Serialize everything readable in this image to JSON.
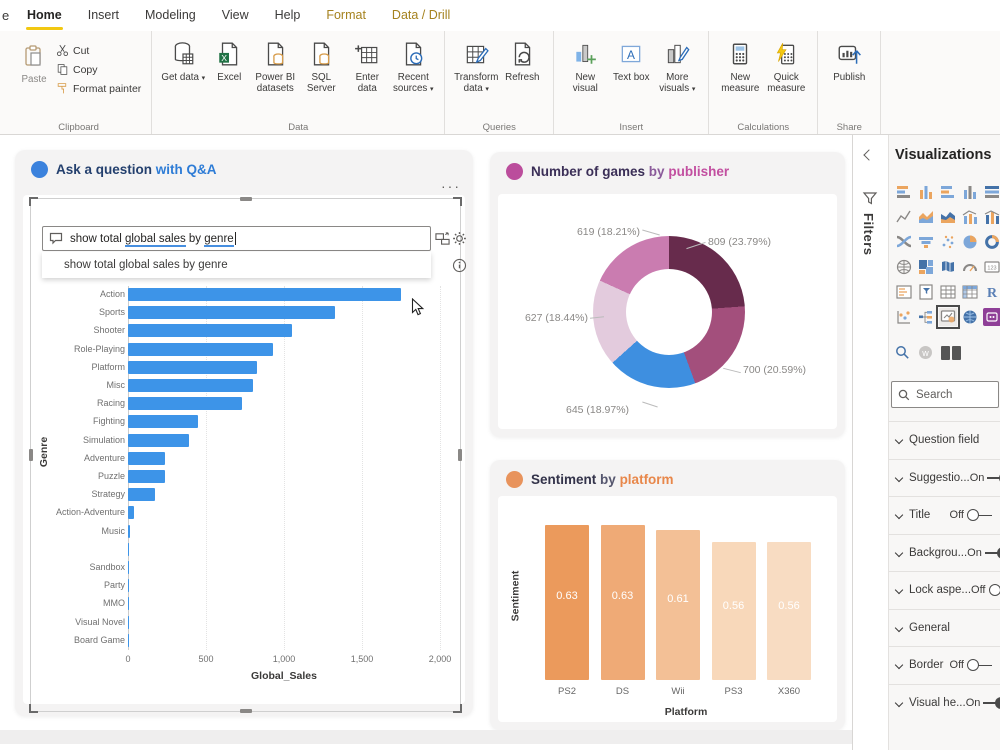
{
  "window": {
    "app": "Power BI Desktop"
  },
  "tabbar": {
    "file_partial": "e",
    "tabs": [
      {
        "label": "Home",
        "active": true,
        "contextual": false
      },
      {
        "label": "Insert",
        "active": false,
        "contextual": false
      },
      {
        "label": "Modeling",
        "active": false,
        "contextual": false
      },
      {
        "label": "View",
        "active": false,
        "contextual": false
      },
      {
        "label": "Help",
        "active": false,
        "contextual": false
      },
      {
        "label": "Format",
        "active": false,
        "contextual": true
      },
      {
        "label": "Data / Drill",
        "active": false,
        "contextual": true
      }
    ]
  },
  "ribbon": {
    "groups": [
      {
        "label": "Clipboard",
        "kind": "clipboard",
        "items": [
          {
            "label": "Paste",
            "icon": "paste-icon",
            "arrow": false
          },
          {
            "label": "Cut",
            "icon": "cut-icon",
            "arrow": false
          },
          {
            "label": "Copy",
            "icon": "copy-icon",
            "arrow": false
          },
          {
            "label": "Format painter",
            "icon": "format-painter-icon",
            "arrow": false
          }
        ]
      },
      {
        "label": "Data",
        "kind": "tall",
        "items": [
          {
            "label": "Get data",
            "icon": "database-icon",
            "arrow": true
          },
          {
            "label": "Excel",
            "icon": "excel-icon",
            "arrow": false
          },
          {
            "label": "Power BI datasets",
            "icon": "doc-cylinder-icon",
            "arrow": false
          },
          {
            "label": "SQL Server",
            "icon": "doc-cylinder-icon",
            "arrow": false
          },
          {
            "label": "Enter data",
            "icon": "table-plus-icon",
            "arrow": false
          },
          {
            "label": "Recent sources",
            "icon": "doc-clock-icon",
            "arrow": true
          }
        ]
      },
      {
        "label": "Queries",
        "kind": "tall",
        "items": [
          {
            "label": "Transform data",
            "icon": "table-pencil-icon",
            "arrow": true
          },
          {
            "label": "Refresh",
            "icon": "doc-refresh-icon",
            "arrow": false
          }
        ]
      },
      {
        "label": "Insert",
        "kind": "tall",
        "items": [
          {
            "label": "New visual",
            "icon": "chart-plus-icon",
            "arrow": false
          },
          {
            "label": "Text box",
            "icon": "textbox-icon",
            "arrow": false
          },
          {
            "label": "More visuals",
            "icon": "chart-pencil-icon",
            "arrow": true
          }
        ]
      },
      {
        "label": "Calculations",
        "kind": "tall",
        "items": [
          {
            "label": "New measure",
            "icon": "calculator-icon",
            "arrow": false
          },
          {
            "label": "Quick measure",
            "icon": "calculator-bolt-icon",
            "arrow": false
          }
        ]
      },
      {
        "label": "Share",
        "kind": "tall",
        "items": [
          {
            "label": "Publish",
            "icon": "publish-icon",
            "arrow": false
          }
        ]
      }
    ]
  },
  "qna": {
    "title_primary": "Ask a question",
    "title_secondary": "with Q&A",
    "title_dot_color": "#3b82dd",
    "more_options": "···",
    "input_segments": [
      {
        "text": "show total ",
        "underline": false
      },
      {
        "text": "global sales",
        "underline": true
      },
      {
        "text": " by ",
        "underline": false
      },
      {
        "text": "genre",
        "underline": true
      }
    ],
    "suggestion": "show total global sales by genre",
    "chart_data": {
      "type": "bar",
      "orientation": "horizontal",
      "categories": [
        "Action",
        "Sports",
        "Shooter",
        "Role-Playing",
        "Platform",
        "Misc",
        "Racing",
        "Fighting",
        "Simulation",
        "Adventure",
        "Puzzle",
        "Strategy",
        "Action-Adventure",
        "Music",
        "",
        "Sandbox",
        "Party",
        "MMO",
        "Visual Novel",
        "Board Game"
      ],
      "values": [
        1750,
        1330,
        1050,
        930,
        830,
        800,
        730,
        450,
        390,
        240,
        240,
        175,
        40,
        10,
        6,
        5,
        4,
        3,
        2,
        1
      ],
      "xlabel": "Global_Sales",
      "ylabel": "Genre",
      "xlim": [
        0,
        2000
      ],
      "xticks": [
        "0",
        "500",
        "1,000",
        "1,500",
        "2,000"
      ],
      "bar_color": "#3d94e8",
      "grid": true
    }
  },
  "donut": {
    "title_primary": "Number of games",
    "title_mid": "by",
    "title_secondary": "publisher",
    "title_dot_color": "#bb4d9c",
    "chart_data": {
      "type": "pie",
      "subtype": "donut",
      "title": "Number of games by publisher",
      "values": [
        809,
        700,
        645,
        627,
        619
      ],
      "percents": [
        23.79,
        20.59,
        18.97,
        18.44,
        18.21
      ],
      "labels": [
        "809 (23.79%)",
        "700 (20.59%)",
        "645 (18.97%)",
        "627 (18.44%)",
        "619 (18.21%)"
      ],
      "colors": [
        "#672b4c",
        "#a34f7c",
        "#3e8fe0",
        "#e3cbdd",
        "#ca7cb0"
      ],
      "legend": "none"
    }
  },
  "sentiment": {
    "title_primary": "Sentiment",
    "title_mid": "by",
    "title_secondary": "platform",
    "title_dot_color": "#e8935c",
    "chart_data": {
      "type": "bar",
      "orientation": "vertical",
      "categories": [
        "PS2",
        "DS",
        "Wii",
        "PS3",
        "X360"
      ],
      "values": [
        0.63,
        0.63,
        0.61,
        0.56,
        0.56
      ],
      "value_labels": [
        "0.63",
        "0.63",
        "0.61",
        "0.56",
        "0.56"
      ],
      "colors": [
        "#eb9a5c",
        "#efaa76",
        "#f3c096",
        "#f8d8ba",
        "#f8dcc2"
      ],
      "xlabel": "Platform",
      "ylabel": "Sentiment",
      "ylim": [
        0,
        0.63
      ]
    }
  },
  "filters_pane": {
    "label": "Filters"
  },
  "viz_panel": {
    "title": "Visualizations",
    "search_placeholder": "Search",
    "icon_names": [
      "stacked-bar-chart-icon",
      "stacked-column-chart-icon",
      "clustered-bar-chart-icon",
      "clustered-column-chart-icon",
      "100-stacked-bar-chart-icon",
      "line-chart-icon",
      "area-chart-icon",
      "stacked-area-chart-icon",
      "line-clustered-column-icon",
      "line-stacked-column-icon",
      "ribbon-chart-icon",
      "funnel-chart-icon",
      "scatter-chart-icon",
      "pie-chart-icon",
      "donut-chart-icon",
      "map-icon",
      "treemap-icon",
      "filled-map-icon",
      "gauge-icon",
      "card-icon",
      "multi-row-card-icon",
      "slicer-icon",
      "table-icon",
      "matrix-icon",
      "r-script-icon",
      "key-influencers-icon",
      "decomposition-tree-icon",
      "qna-icon",
      "ai-insights-icon",
      "paginated-report-icon"
    ],
    "selected_icon": "qna-icon",
    "tool_icons": [
      "search-visuals-icon",
      "w-badge-icon",
      "panel-tiles-icon"
    ],
    "format_sections": [
      {
        "label": "Question field",
        "state": ""
      },
      {
        "label": "Suggestio...",
        "state": "On"
      },
      {
        "label": "Title",
        "state": "Off"
      },
      {
        "label": "Backgrou...",
        "state": "On"
      },
      {
        "label": "Lock aspe...",
        "state": "Off"
      },
      {
        "label": "General",
        "state": ""
      },
      {
        "label": "Border",
        "state": "Off"
      },
      {
        "label": "Visual he...",
        "state": "On"
      }
    ]
  }
}
